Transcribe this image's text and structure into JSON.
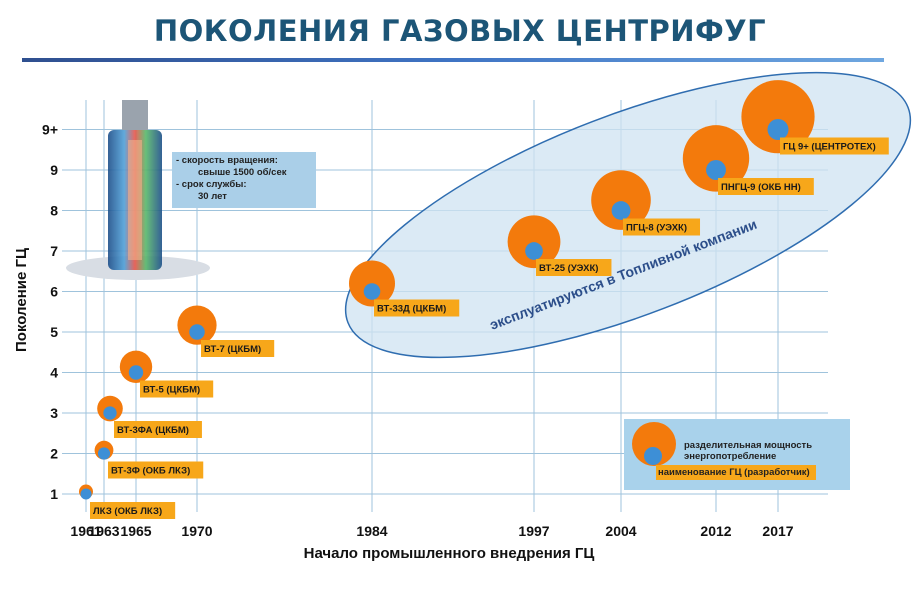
{
  "title": "ПОКОЛЕНИЯ ГАЗОВЫХ ЦЕНТРИФУГ",
  "info_box": {
    "line1": "- скорость вращения:",
    "line2": "свыше 1500 об/сек",
    "line3": "- срок службы:",
    "line4": "30 лет"
  },
  "legend": {
    "circle_meaning_1": "разделительная мощность",
    "circle_meaning_2": "энергопотребление",
    "label_meaning": "наименование ГЦ (разработчик)"
  },
  "ellipse_annotation": "эксплуатируются в Топливной компании",
  "colors": {
    "orange": "#f37a0c",
    "blue": "#3d8fd6",
    "label_bg": "#f7a71a",
    "grid": "#9fc3dc",
    "ellipse_fill": "#cfe3f2",
    "ellipse_stroke": "#2f6db0",
    "title": "#1c5577"
  },
  "chart_data": {
    "type": "scatter",
    "title": "",
    "xlabel": "Начало промышленного внедрения ГЦ",
    "ylabel": "Поколение ГЦ",
    "x_ticks": [
      "1961",
      "1963",
      "1965",
      "1970",
      "1984",
      "1997",
      "2004",
      "2012",
      "2017"
    ],
    "y_ticks": [
      "1",
      "2",
      "3",
      "4",
      "5",
      "6",
      "7",
      "8",
      "9",
      "9+"
    ],
    "grid": true,
    "points": [
      {
        "year": 1961,
        "generation": 1,
        "label": "ЛКЗ (ОКБ ЛКЗ)"
      },
      {
        "year": 1963,
        "generation": 2,
        "label": "ВТ-3Ф (ОКБ ЛКЗ)"
      },
      {
        "year": 1964,
        "generation": 3,
        "label": "ВТ-3ФА (ЦКБМ)"
      },
      {
        "year": 1965,
        "generation": 4,
        "label": "ВТ-5 (ЦКБМ)"
      },
      {
        "year": 1970,
        "generation": 5,
        "label": "ВТ-7 (ЦКБМ)"
      },
      {
        "year": 1984,
        "generation": 6,
        "label": "ВТ-33Д (ЦКБМ)"
      },
      {
        "year": 1997,
        "generation": 7,
        "label": "ВТ-25 (УЭХК)"
      },
      {
        "year": 2004,
        "generation": 8,
        "label": "ПГЦ-8 (УЭХК)"
      },
      {
        "year": 2012,
        "generation": 9,
        "label": "ПНГЦ-9 (ОКБ НН)"
      },
      {
        "year": 2017,
        "generation": "9+",
        "label": "ГЦ 9+ (ЦЕНТРОТЕХ)"
      }
    ]
  }
}
